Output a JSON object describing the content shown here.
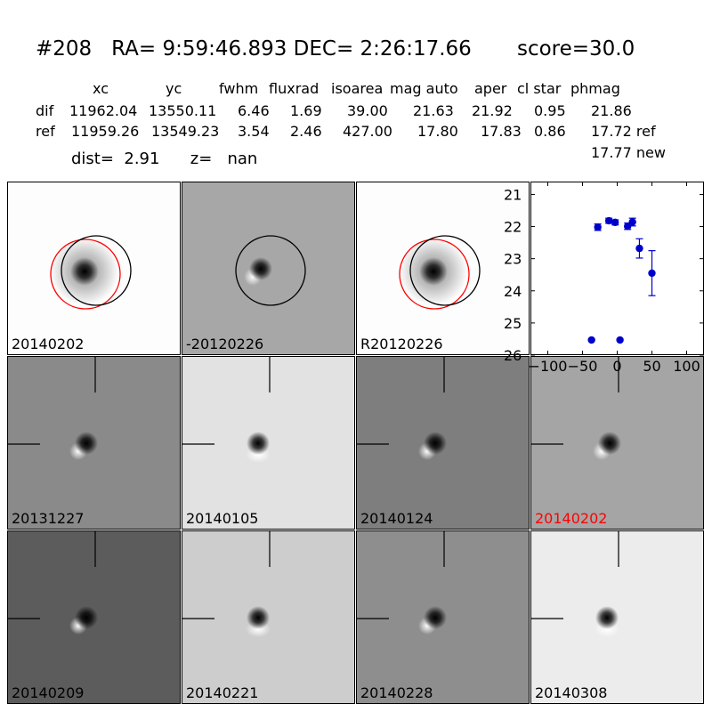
{
  "header": {
    "title": "#208   RA= 9:59:46.893 DEC= 2:26:17.66       score=30.0",
    "columns": [
      "xc",
      "yc",
      "fwhm",
      "fluxrad",
      "isoarea",
      "mag auto",
      "aper",
      "cl star",
      "phmag"
    ],
    "rows": [
      {
        "label": "dif",
        "values": [
          "11962.04",
          "13550.11",
          "6.46",
          "1.69",
          "39.00",
          "21.63",
          "21.92",
          "0.95",
          "21.86"
        ]
      },
      {
        "label": "ref",
        "values": [
          "11959.26",
          "13549.23",
          "3.54",
          "2.46",
          "427.00",
          "17.80",
          "17.83",
          "0.86",
          "17.72 ref"
        ]
      }
    ],
    "extra_phmag": "17.77 new",
    "dist_line": "dist=  2.91      z=   nan"
  },
  "stamps": [
    {
      "label": "20140202",
      "kind": "star",
      "bg": "#fdfdfd",
      "circles": [
        "red",
        "black"
      ],
      "crosshair": false,
      "label_color": "#000000"
    },
    {
      "label": "-20120226",
      "kind": "dipole",
      "bg": "#a7a7a7",
      "circles": [
        "black"
      ],
      "crosshair": false,
      "label_color": "#000000"
    },
    {
      "label": "R20120226",
      "kind": "star",
      "bg": "#fdfdfd",
      "circles": [
        "red",
        "black"
      ],
      "crosshair": false,
      "label_color": "#000000"
    },
    {
      "label": "20131227",
      "kind": "dipole",
      "bg": "#8a8a8a",
      "circles": [],
      "crosshair": true,
      "label_color": "#000000"
    },
    {
      "label": "20140105",
      "kind": "spot",
      "bg": "#e2e2e2",
      "circles": [],
      "crosshair": true,
      "label_color": "#000000"
    },
    {
      "label": "20140124",
      "kind": "dipole",
      "bg": "#7e7e7e",
      "circles": [],
      "crosshair": true,
      "label_color": "#000000"
    },
    {
      "label": "20140202",
      "kind": "dipole",
      "bg": "#a5a5a5",
      "circles": [],
      "crosshair": true,
      "label_color": "#ff0000"
    },
    {
      "label": "20140209",
      "kind": "dipole",
      "bg": "#5c5c5c",
      "circles": [],
      "crosshair": true,
      "label_color": "#000000"
    },
    {
      "label": "20140221",
      "kind": "spot",
      "bg": "#cdcdcd",
      "circles": [],
      "crosshair": true,
      "label_color": "#000000"
    },
    {
      "label": "20140228",
      "kind": "dipole",
      "bg": "#8e8e8e",
      "circles": [],
      "crosshair": true,
      "label_color": "#000000"
    },
    {
      "label": "20140308",
      "kind": "spot",
      "bg": "#ececec",
      "circles": [],
      "crosshair": true,
      "label_color": "#000000"
    }
  ],
  "chart_data": {
    "type": "scatter",
    "title": "",
    "xlabel": "",
    "ylabel": "",
    "xlim": [
      -125,
      125
    ],
    "ylim": [
      26,
      20.6
    ],
    "y_inverted": true,
    "xticks": [
      -100,
      -50,
      0,
      50,
      100
    ],
    "xtick_labels": [
      "−100",
      "−50",
      "0",
      "50",
      "100"
    ],
    "yticks": [
      21,
      22,
      23,
      24,
      25,
      26
    ],
    "grid": false,
    "point_color": "#0000cc",
    "series": [
      {
        "points": [
          {
            "x": -37,
            "y": 25.53,
            "err": 0
          },
          {
            "x": -28,
            "y": 22.02,
            "err": 0.1
          },
          {
            "x": -12,
            "y": 21.82,
            "err": 0.08
          },
          {
            "x": -3,
            "y": 21.87,
            "err": 0.08
          },
          {
            "x": 4,
            "y": 25.53,
            "err": 0
          },
          {
            "x": 15,
            "y": 21.99,
            "err": 0.1
          },
          {
            "x": 22,
            "y": 21.86,
            "err": 0.12
          },
          {
            "x": 32,
            "y": 22.68,
            "err": 0.3
          },
          {
            "x": 50,
            "y": 23.45,
            "err": 0.7
          }
        ]
      }
    ]
  }
}
